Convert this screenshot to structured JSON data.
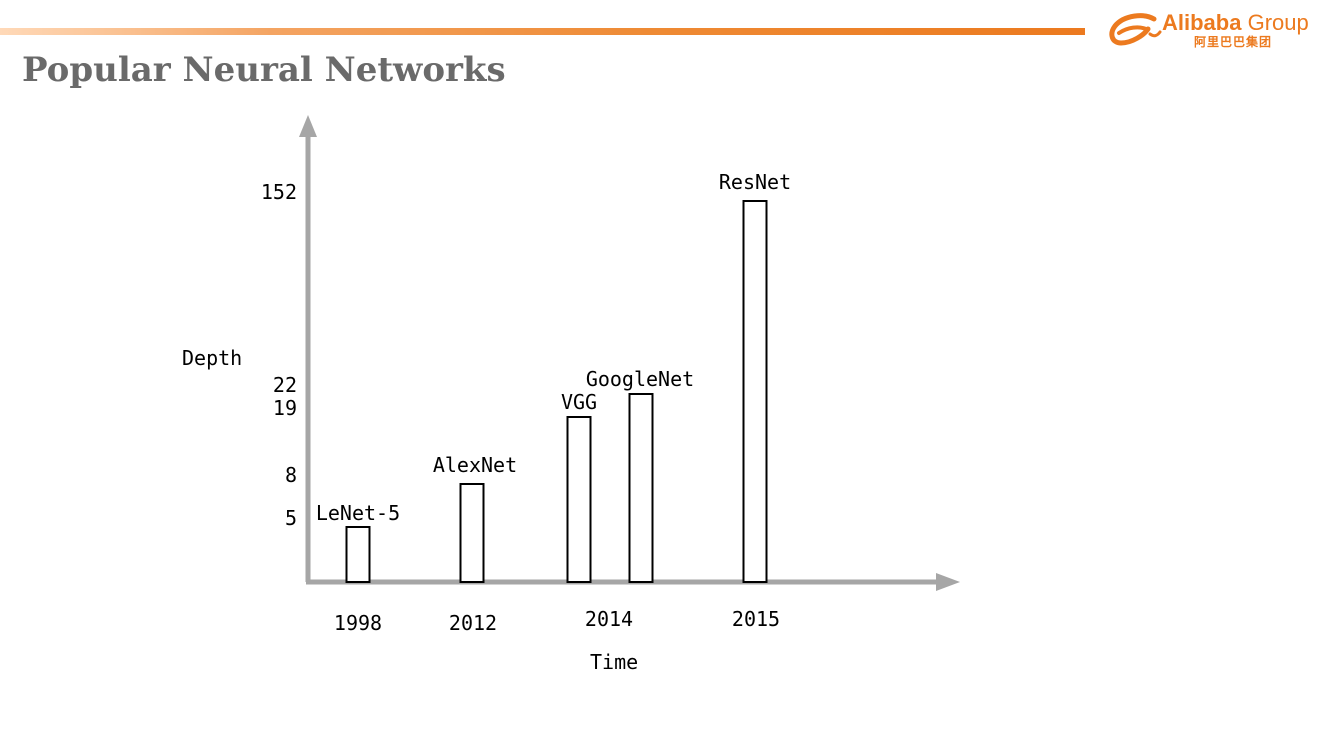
{
  "header": {
    "title": "Popular Neural Networks",
    "accent_color": "#ec7a1f",
    "logo": {
      "brand": "Alibaba",
      "group": "Group",
      "chinese": "阿里巴巴集团",
      "icon": "alibaba-e-icon"
    }
  },
  "chart_data": {
    "type": "bar",
    "title": "",
    "xlabel": "Time",
    "ylabel": "Depth",
    "y_ticks": [
      "152",
      "22",
      "19",
      "8",
      "5"
    ],
    "x_ticks": [
      "1998",
      "2012",
      "2014",
      "2015"
    ],
    "bars": [
      {
        "label": "LeNet-5",
        "year": "1998",
        "depth": 5
      },
      {
        "label": "AlexNet",
        "year": "2012",
        "depth": 8
      },
      {
        "label": "VGG",
        "year": "2014",
        "depth": 19
      },
      {
        "label": "GoogleNet",
        "year": "2014",
        "depth": 22
      },
      {
        "label": "ResNet",
        "year": "2015",
        "depth": 152
      }
    ],
    "grid": false,
    "axis_color": "#a6a6a6",
    "bar_fill": "#ffffff",
    "bar_stroke": "#000000"
  }
}
